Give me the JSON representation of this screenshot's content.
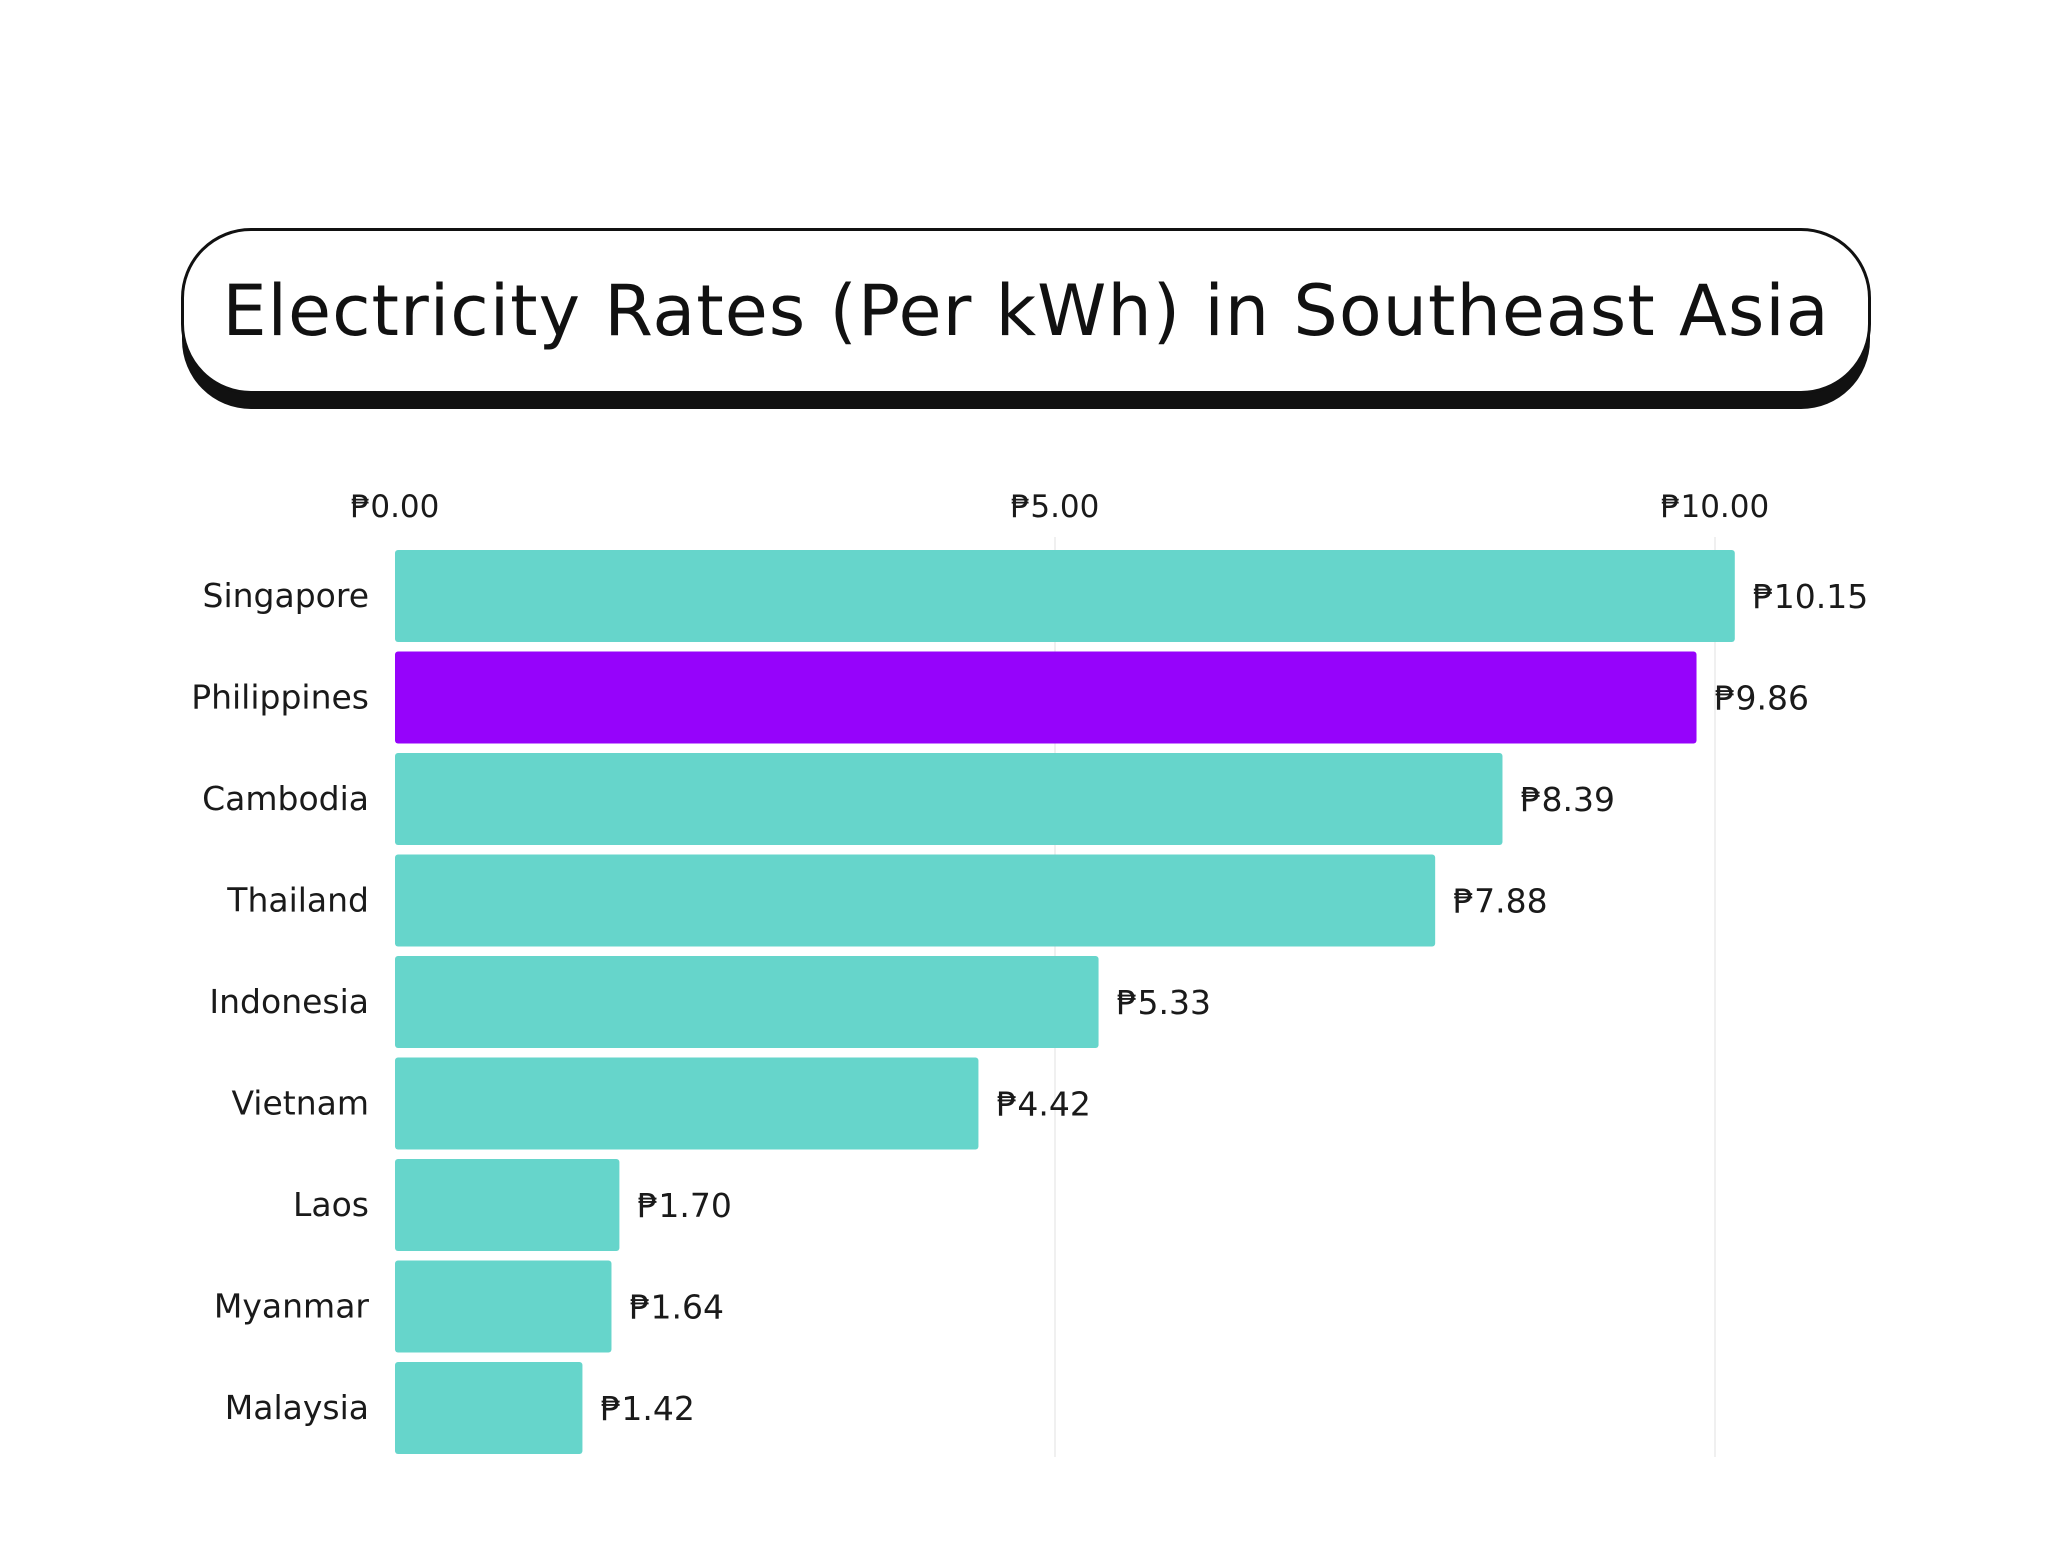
{
  "chart_data": {
    "type": "bar",
    "orientation": "horizontal",
    "title": "Electricity Rates (Per kWh) in Southeast Asia",
    "xlabel": "",
    "ylabel": "",
    "xlim": [
      0,
      10
    ],
    "ticks": [
      {
        "value": 0,
        "label": "₱0.00"
      },
      {
        "value": 5,
        "label": "₱5.00"
      },
      {
        "value": 10,
        "label": "₱10.00"
      }
    ],
    "categories": [
      "Singapore",
      "Philippines",
      "Cambodia",
      "Thailand",
      "Indonesia",
      "Vietnam",
      "Laos",
      "Myanmar",
      "Malaysia"
    ],
    "values": [
      10.15,
      9.86,
      8.39,
      7.88,
      5.33,
      4.42,
      1.7,
      1.64,
      1.42
    ],
    "value_labels": [
      "₱10.15",
      "₱9.86",
      "₱8.39",
      "₱7.88",
      "₱5.33",
      "₱4.42",
      "₱1.70",
      "₱1.64",
      "₱1.42"
    ],
    "colors": {
      "default": "#66d5cb",
      "highlight": "#9603fb",
      "highlight_category": "Philippines",
      "text": "#1a1a1a",
      "grid": "#f0f0f0"
    },
    "legend": "none",
    "grid": true
  }
}
